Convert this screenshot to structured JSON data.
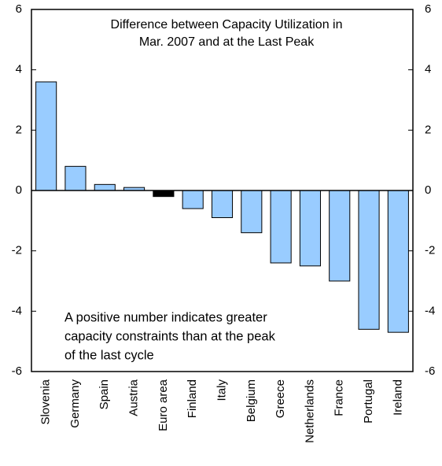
{
  "chart_data": {
    "type": "bar",
    "title": [
      "Difference between Capacity Utilization in",
      "Mar. 2007 and at the Last Peak"
    ],
    "annotation": [
      "A positive number indicates greater",
      "capacity constraints than at the peak",
      "of the last cycle"
    ],
    "categories": [
      "Slovenia",
      "Germany",
      "Spain",
      "Austria",
      "Euro area",
      "Finland",
      "Italy",
      "Belgium",
      "Greece",
      "Netherlands",
      "France",
      "Portugal",
      "Ireland"
    ],
    "values": [
      3.6,
      0.8,
      0.2,
      0.1,
      -0.2,
      -0.6,
      -0.9,
      -1.4,
      -2.4,
      -2.5,
      -3.0,
      -4.6,
      -4.7
    ],
    "colors": [
      "#99ccff",
      "#99ccff",
      "#99ccff",
      "#99ccff",
      "#000000",
      "#99ccff",
      "#99ccff",
      "#99ccff",
      "#99ccff",
      "#99ccff",
      "#99ccff",
      "#99ccff",
      "#99ccff"
    ],
    "ylim": [
      -6,
      6
    ],
    "yticks": [
      -6,
      -4,
      -2,
      0,
      2,
      4,
      6
    ],
    "y2lim": [
      -6,
      6
    ],
    "y2ticks": [
      -6,
      -4,
      -2,
      0,
      2,
      4,
      6
    ]
  }
}
